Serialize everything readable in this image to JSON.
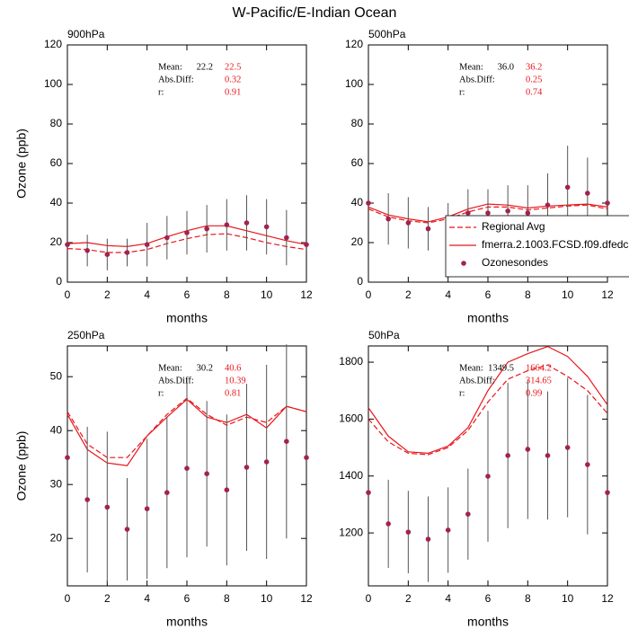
{
  "title": "W-Pacific/E-Indian Ocean",
  "chart_data": [
    {
      "type": "line",
      "title": "900hPa",
      "xlabel": "months",
      "ylabel": "Ozone (ppb)",
      "x": [
        0,
        1,
        2,
        3,
        4,
        5,
        6,
        7,
        8,
        9,
        10,
        11,
        12
      ],
      "xlim": [
        0,
        12
      ],
      "xticks": [
        0,
        2,
        4,
        6,
        8,
        10,
        12
      ],
      "ylim": [
        0,
        120
      ],
      "yticks": [
        0,
        20,
        40,
        60,
        80,
        100,
        120
      ],
      "series": [
        {
          "kind": "line",
          "dash": true,
          "color": "#e8161b",
          "values": [
            17,
            16.5,
            15,
            15,
            16.5,
            19.5,
            22,
            24,
            24.5,
            22.5,
            20,
            18,
            16.5
          ]
        },
        {
          "kind": "line",
          "dash": false,
          "color": "#e8161b",
          "values": [
            19.5,
            20,
            18.5,
            18,
            19.5,
            23,
            26,
            28.5,
            28.5,
            26,
            23.5,
            21,
            19
          ]
        },
        {
          "kind": "scatter",
          "color": "#a3224f",
          "values": [
            19,
            16,
            14,
            15,
            19,
            22.5,
            25,
            27,
            29,
            30,
            28,
            22.5,
            19
          ],
          "errors": [
            0,
            8,
            8,
            7,
            11,
            11,
            11,
            12,
            13,
            14,
            14,
            14,
            0
          ]
        }
      ],
      "stats": [
        {
          "label": "Mean:",
          "values": [
            "22.2",
            "22.5"
          ]
        },
        {
          "label": "Abs.Diff:",
          "values": [
            "0.32"
          ]
        },
        {
          "label": "r:",
          "values": [
            "0.91"
          ]
        }
      ]
    },
    {
      "type": "line",
      "title": "500hPa",
      "xlabel": "months",
      "legend": "lower right",
      "x": [
        0,
        1,
        2,
        3,
        4,
        5,
        6,
        7,
        8,
        9,
        10,
        11,
        12
      ],
      "xlim": [
        0,
        12
      ],
      "xticks": [
        0,
        2,
        4,
        6,
        8,
        10,
        12
      ],
      "ylim": [
        0,
        120
      ],
      "yticks": [
        0,
        20,
        40,
        60,
        80,
        100,
        120
      ],
      "series": [
        {
          "kind": "line",
          "name": "Regional Avg",
          "dash": true,
          "color": "#e8161b",
          "values": [
            37,
            33,
            31,
            30,
            32,
            35.5,
            38,
            38,
            36.5,
            37.5,
            38.5,
            39,
            37
          ]
        },
        {
          "kind": "line",
          "name": "fmerra.2.1003.FCSD.f09.dfedc",
          "dash": false,
          "color": "#e8161b",
          "values": [
            38,
            34,
            32,
            30.5,
            33,
            37,
            39.5,
            39,
            37.5,
            38.5,
            39,
            39.5,
            38
          ]
        },
        {
          "kind": "scatter",
          "name": "Ozonesondes",
          "color": "#a3224f",
          "values": [
            40,
            32,
            30,
            27,
            30,
            35,
            35,
            36,
            35,
            39,
            48,
            45,
            40
          ],
          "errors": [
            0,
            13,
            13,
            11,
            10,
            12,
            12,
            13,
            14,
            16,
            21,
            18,
            0
          ]
        }
      ],
      "stats": [
        {
          "label": "Mean:",
          "values": [
            "36.0",
            "36.2"
          ]
        },
        {
          "label": "Abs.Diff:",
          "values": [
            "0.25"
          ]
        },
        {
          "label": "r:",
          "values": [
            "0.74"
          ]
        }
      ]
    },
    {
      "type": "line",
      "title": "250hPa",
      "xlabel": "months",
      "ylabel": "Ozone (ppb)",
      "x": [
        0,
        1,
        2,
        3,
        4,
        5,
        6,
        7,
        8,
        9,
        10,
        11,
        12
      ],
      "xlim": [
        0,
        12
      ],
      "xticks": [
        0,
        2,
        4,
        6,
        8,
        10,
        12
      ],
      "ylim": [
        11.2,
        55.7
      ],
      "yticks": [
        20,
        30,
        40,
        50
      ],
      "series": [
        {
          "kind": "line",
          "dash": true,
          "color": "#e8161b",
          "values": [
            43.5,
            37.5,
            35,
            35,
            39,
            43,
            46,
            43,
            41,
            42.5,
            41.5,
            44.5,
            43.5
          ]
        },
        {
          "kind": "line",
          "dash": false,
          "color": "#e8161b",
          "values": [
            43,
            36.5,
            34,
            33.5,
            39,
            42.5,
            45.8,
            42.5,
            41.5,
            43,
            40.5,
            44.5,
            43.5
          ]
        },
        {
          "kind": "scatter",
          "color": "#a3224f",
          "values": [
            35,
            27.2,
            25.8,
            21.7,
            25.5,
            28.5,
            33,
            32,
            29,
            33.2,
            34.2,
            38,
            35
          ],
          "errors": [
            0,
            13.5,
            14,
            9.5,
            13,
            14,
            16.5,
            13.5,
            14,
            15.5,
            18,
            18,
            0
          ]
        }
      ],
      "stats": [
        {
          "label": "Mean:",
          "values": [
            "30.2",
            "40.6"
          ]
        },
        {
          "label": "Abs.Diff:",
          "values": [
            "10.39"
          ]
        },
        {
          "label": "r:",
          "values": [
            "0.81"
          ]
        }
      ]
    },
    {
      "type": "line",
      "title": "50hPa",
      "xlabel": "months",
      "x": [
        0,
        1,
        2,
        3,
        4,
        5,
        6,
        7,
        8,
        9,
        10,
        11,
        12
      ],
      "xlim": [
        0,
        12
      ],
      "xticks": [
        0,
        2,
        4,
        6,
        8,
        10,
        12
      ],
      "ylim": [
        1014,
        1857
      ],
      "yticks": [
        1200,
        1400,
        1600,
        1800
      ],
      "series": [
        {
          "kind": "line",
          "dash": true,
          "color": "#e8161b",
          "values": [
            1600,
            1520,
            1480,
            1475,
            1500,
            1560,
            1660,
            1740,
            1770,
            1790,
            1750,
            1700,
            1620
          ]
        },
        {
          "kind": "line",
          "dash": false,
          "color": "#e8161b",
          "values": [
            1640,
            1540,
            1485,
            1480,
            1505,
            1570,
            1700,
            1800,
            1830,
            1855,
            1820,
            1750,
            1650
          ]
        },
        {
          "kind": "scatter",
          "color": "#a3224f",
          "values": [
            1342,
            1232,
            1203,
            1178,
            1210,
            1266,
            1399,
            1472,
            1494,
            1472,
            1500,
            1440,
            1342
          ],
          "errors": [
            0,
            155,
            145,
            150,
            150,
            160,
            230,
            255,
            245,
            225,
            245,
            245,
            0
          ]
        }
      ],
      "stats": [
        {
          "label": "Mean:",
          "values": [
            "1349.5",
            "1664.2"
          ]
        },
        {
          "label": "Abs.Diff:",
          "values": [
            "314.65"
          ]
        },
        {
          "label": "r:",
          "values": [
            "0.99"
          ]
        }
      ]
    }
  ]
}
